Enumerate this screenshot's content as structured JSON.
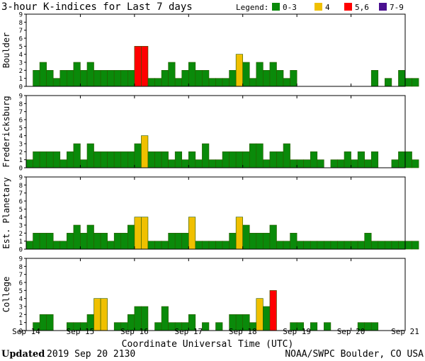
{
  "chart_data": {
    "type": "bar",
    "title": "3-hour K-indices for Last 7 days",
    "legend": {
      "label": "Legend:",
      "entries": [
        {
          "label": "0-3",
          "color": "#0a8a0a"
        },
        {
          "label": "4",
          "color": "#f0c000"
        },
        {
          "label": "5,6",
          "color": "#ff0000"
        },
        {
          "label": "7-9",
          "color": "#4a1090"
        }
      ]
    },
    "xlabel": "Coordinate Universal Time (UTC)",
    "x_ticks": [
      "Sep 14",
      "Sep 15",
      "Sep 16",
      "Sep 17",
      "Sep 18",
      "Sep 19",
      "Sep 20",
      "Sep 21"
    ],
    "ylim": [
      0,
      9
    ],
    "y_ticks": [
      "0",
      "1",
      "2",
      "3",
      "4",
      "5",
      "6",
      "7",
      "8",
      "9"
    ],
    "bar_interval_hours": 3,
    "panels": [
      {
        "name": "Boulder",
        "values": [
          0,
          2,
          3,
          2,
          1,
          2,
          2,
          3,
          2,
          3,
          2,
          2,
          2,
          2,
          2,
          2,
          5,
          5,
          1,
          1,
          2,
          3,
          1,
          2,
          3,
          2,
          2,
          1,
          1,
          1,
          2,
          4,
          3,
          1,
          3,
          2,
          3,
          2,
          1,
          2,
          0,
          0,
          0,
          0,
          0,
          0,
          0,
          0,
          0,
          0,
          0,
          2,
          0,
          1,
          0,
          2,
          1,
          1,
          0
        ]
      },
      {
        "name": "Fredericksburg",
        "values": [
          1,
          2,
          2,
          2,
          2,
          1,
          2,
          3,
          1,
          3,
          2,
          2,
          2,
          2,
          2,
          2,
          3,
          4,
          2,
          2,
          2,
          1,
          2,
          1,
          2,
          1,
          3,
          1,
          1,
          2,
          2,
          2,
          2,
          3,
          3,
          1,
          2,
          2,
          3,
          1,
          1,
          1,
          2,
          1,
          0,
          1,
          1,
          2,
          1,
          2,
          1,
          2,
          0,
          0,
          1,
          2,
          2,
          1,
          0
        ]
      },
      {
        "name": "Est. Planetary",
        "values": [
          1,
          2,
          2,
          2,
          1,
          1,
          2,
          3,
          2,
          3,
          2,
          2,
          1,
          2,
          2,
          3,
          4,
          4,
          1,
          1,
          1,
          2,
          2,
          2,
          4,
          1,
          1,
          1,
          1,
          1,
          2,
          4,
          3,
          2,
          2,
          2,
          3,
          1,
          1,
          2,
          1,
          1,
          1,
          1,
          1,
          1,
          1,
          1,
          1,
          1,
          2,
          1,
          1,
          1,
          1,
          1,
          1,
          1
        ]
      },
      {
        "name": "College",
        "values": [
          0,
          1,
          2,
          2,
          0,
          0,
          1,
          1,
          1,
          2,
          4,
          4,
          0,
          1,
          1,
          2,
          3,
          3,
          0,
          1,
          3,
          1,
          1,
          1,
          2,
          0,
          1,
          0,
          1,
          0,
          2,
          2,
          2,
          1,
          4,
          3,
          5,
          0,
          0,
          1,
          1,
          0,
          1,
          0,
          1,
          0,
          0,
          0,
          0,
          1,
          1,
          1,
          0,
          0,
          0,
          0,
          0,
          0,
          0
        ]
      }
    ]
  },
  "footer": {
    "updated_label": "Updated",
    "updated_value": "2019 Sep 20 2130",
    "source": "NOAA/SWPC Boulder, CO USA"
  }
}
